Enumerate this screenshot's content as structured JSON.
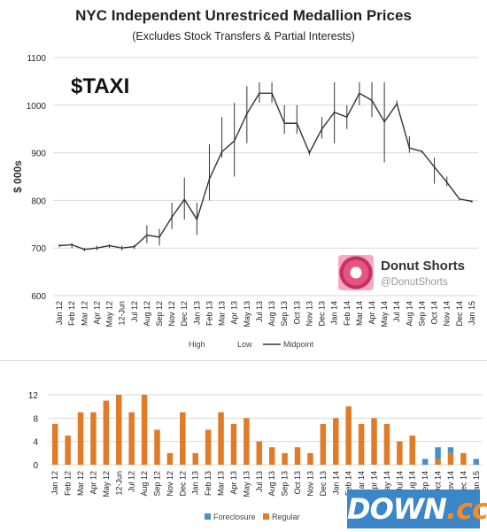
{
  "header": {
    "title": "NYC Independent Unrestriced Medallion Prices",
    "subtitle": "(Excludes Stock Transfers & Partial Interests)"
  },
  "branding": {
    "ticker": "$TAXI",
    "name": "Donut Shorts",
    "handle": "@DonutShorts",
    "watermark_main": "DOWN",
    "watermark_accent": ".cc"
  },
  "colors": {
    "line": "#333333",
    "regular": "#e07b28",
    "foreclosure": "#4a90c8",
    "grid": "#d9d9d9"
  },
  "chart_data": [
    {
      "type": "line",
      "ylabel": "$ 000s",
      "ylim": [
        600,
        1100
      ],
      "yticks": [
        600,
        700,
        800,
        900,
        1000,
        1100
      ],
      "grid": true,
      "legend": [
        "High",
        "Low",
        "Midpoint"
      ],
      "categories": [
        "Jan 12",
        "Feb 12",
        "Mar 12",
        "Apr 12",
        "May 12",
        "12-Jun",
        "Jul 12",
        "Aug 12",
        "Sep 12",
        "Nov 12",
        "Dec 12",
        "Jan 13",
        "Feb 13",
        "Mar 13",
        "Apr 13",
        "May 13",
        "Jul 13",
        "Aug 13",
        "Sep 13",
        "Oct 13",
        "Nov 13",
        "Dec 13",
        "Jan 14",
        "Feb 14",
        "Mar 14",
        "Apr 14",
        "May 14",
        "Jul 14",
        "Aug 14",
        "Sep 14",
        "Oct 14",
        "Nov 14",
        "Dec 14",
        "Jan 15"
      ],
      "midpoint": [
        705,
        707,
        697,
        700,
        705,
        700,
        703,
        727,
        723,
        765,
        802,
        760,
        845,
        902,
        925,
        982,
        1025,
        1025,
        962,
        962,
        900,
        950,
        985,
        975,
        1025,
        1010,
        965,
        1003,
        910,
        903,
        870,
        838,
        803,
        798
      ],
      "high": [
        708,
        710,
        700,
        705,
        708,
        705,
        707,
        748,
        740,
        795,
        848,
        795,
        918,
        975,
        1005,
        1040,
        1048,
        1048,
        1000,
        1000,
        905,
        975,
        1048,
        1000,
        1048,
        1048,
        1048,
        1010,
        935,
        905,
        890,
        850,
        805,
        800
      ],
      "low": [
        702,
        700,
        693,
        695,
        700,
        695,
        698,
        710,
        705,
        740,
        760,
        727,
        800,
        890,
        850,
        920,
        1005,
        1005,
        940,
        940,
        895,
        930,
        920,
        950,
        1000,
        975,
        880,
        1000,
        900,
        900,
        835,
        830,
        800,
        795
      ]
    },
    {
      "type": "bar",
      "stacked": true,
      "ylim": [
        0,
        12
      ],
      "yticks": [
        0,
        4,
        8,
        12
      ],
      "grid": true,
      "legend": [
        "Foreclosure",
        "Regular"
      ],
      "categories": [
        "Jan 12",
        "Feb 12",
        "Mar 12",
        "Apr 12",
        "May 12",
        "12-Jun",
        "Jul 12",
        "Aug 12",
        "Sep 12",
        "Nov 12",
        "Dec 12",
        "Jan 13",
        "Feb 13",
        "Mar 13",
        "Apr 13",
        "May 13",
        "Jul 13",
        "Aug 13",
        "Sep 13",
        "Oct 13",
        "Nov 13",
        "Dec 13",
        "Jan 14",
        "Feb 14",
        "Mar 14",
        "Apr 14",
        "May 14",
        "Jul 14",
        "Aug 14",
        "Sep 14",
        "Oct 14",
        "Nov 14",
        "Dec 14",
        "Jan 15"
      ],
      "series": [
        {
          "name": "Regular",
          "values": [
            7,
            5,
            9,
            9,
            11,
            12,
            9,
            12,
            6,
            2,
            9,
            2,
            6,
            9,
            7,
            8,
            4,
            3,
            2,
            3,
            2,
            7,
            8,
            10,
            7,
            8,
            7,
            4,
            5,
            0,
            1,
            2,
            2,
            0
          ]
        },
        {
          "name": "Foreclosure",
          "values": [
            0,
            0,
            0,
            0,
            0,
            0,
            0,
            0,
            0,
            0,
            0,
            0,
            0,
            0,
            0,
            0,
            0,
            0,
            0,
            0,
            0,
            0,
            0,
            0,
            0,
            0,
            0,
            0,
            0,
            1,
            2,
            1,
            0,
            1
          ]
        }
      ]
    }
  ]
}
